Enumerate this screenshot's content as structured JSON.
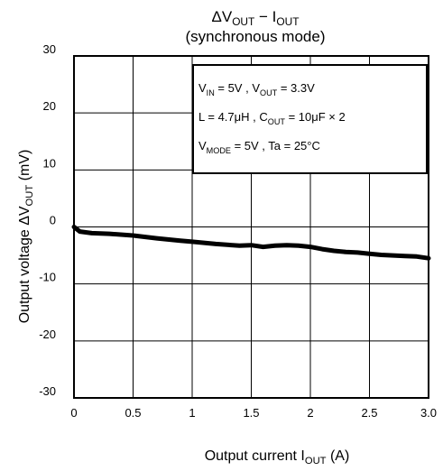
{
  "chart_data": {
    "type": "line",
    "title": {
      "pre": "ΔV",
      "sub1": "OUT",
      "mid": " − I",
      "sub2": "OUT"
    },
    "subtitle": "(synchronous mode)",
    "xlabel": {
      "main": "Output current   I",
      "sub": "OUT",
      "unit": "   (A)"
    },
    "ylabel": {
      "main": "Output voltage   ΔV",
      "sub": "OUT",
      "unit": "   (mV)"
    },
    "xlim": [
      0,
      3.0
    ],
    "ylim": [
      -30,
      30
    ],
    "xticks": [
      "0",
      "0.5",
      "1",
      "1.5",
      "2",
      "2.5",
      "3.0"
    ],
    "yticks": [
      "30",
      "20",
      "10",
      "0",
      "-10",
      "-20",
      "-30"
    ],
    "grid": true,
    "annotation_lines": [
      {
        "p1": "V",
        "s1": "IN",
        "p2": " = 5V , V",
        "s2": "OUT",
        "p3": " = 3.3V"
      },
      {
        "p1": "L = 4.7μH , C",
        "s1": "OUT",
        "p2": " = 10μF × 2",
        "s2": "",
        "p3": ""
      },
      {
        "p1": "V",
        "s1": "MODE",
        "p2": " = 5V , Ta = 25°C",
        "s2": "",
        "p3": ""
      }
    ],
    "series": [
      {
        "x": [
          0,
          0.05,
          0.15,
          0.3,
          0.5,
          0.7,
          0.9,
          1.0,
          1.2,
          1.4,
          1.5,
          1.6,
          1.7,
          1.8,
          1.9,
          2.0,
          2.1,
          2.2,
          2.3,
          2.4,
          2.5,
          2.6,
          2.7,
          2.8,
          2.9,
          3.0
        ],
        "y": [
          0,
          -0.8,
          -1.1,
          -1.2,
          -1.5,
          -2.0,
          -2.4,
          -2.6,
          -3.0,
          -3.3,
          -3.2,
          -3.5,
          -3.3,
          -3.2,
          -3.3,
          -3.5,
          -3.9,
          -4.2,
          -4.4,
          -4.5,
          -4.7,
          -4.9,
          -5.0,
          -5.1,
          -5.2,
          -5.5
        ]
      }
    ]
  }
}
